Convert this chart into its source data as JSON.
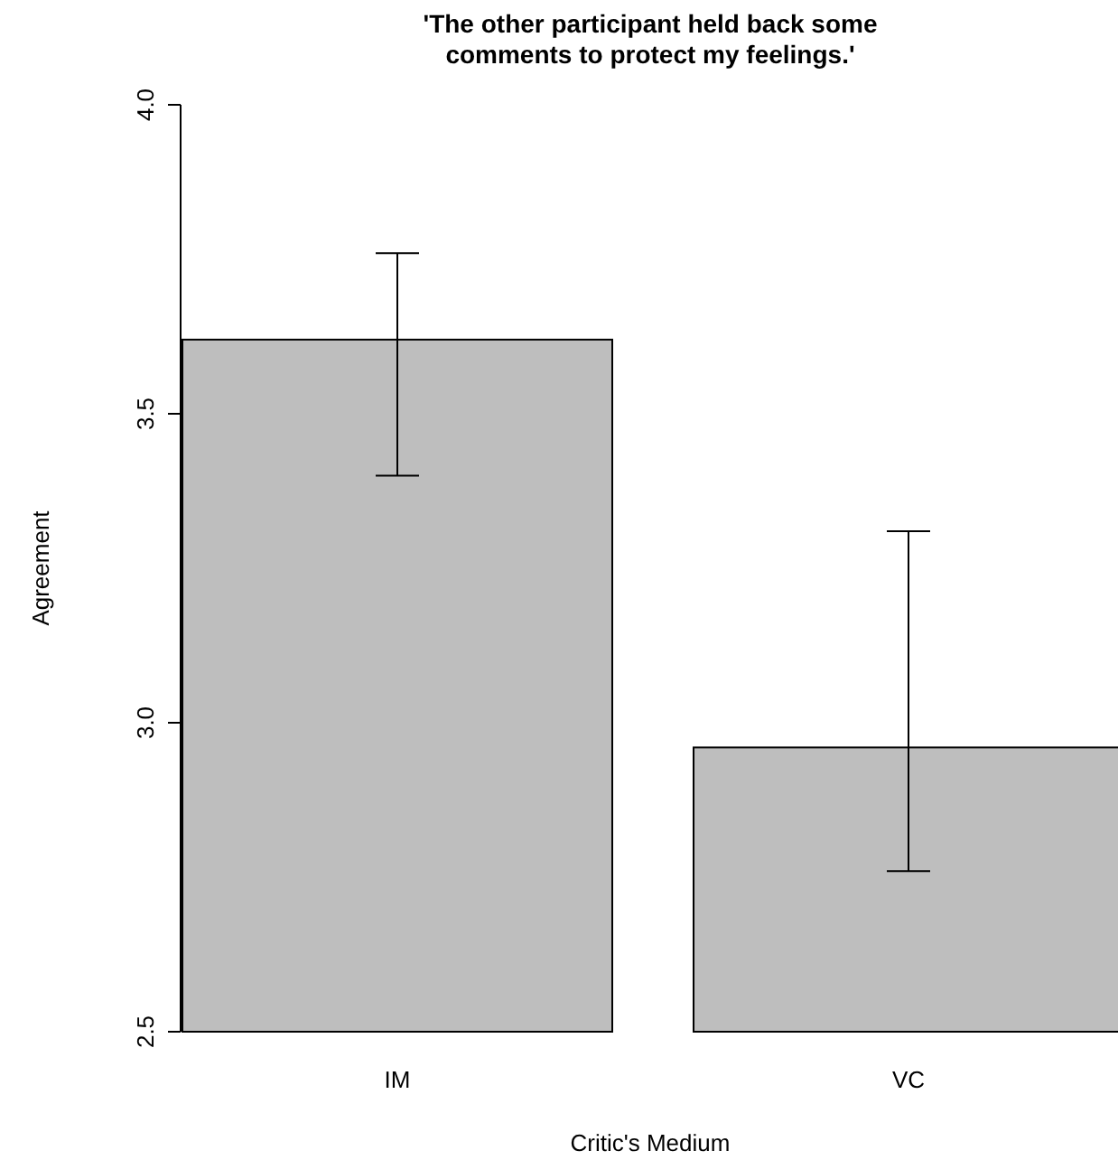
{
  "chart_data": {
    "type": "bar",
    "title": "'The other participant held back some\ncomments to protect my feelings.'",
    "xlabel": "Critic's Medium",
    "ylabel": "Agreement",
    "categories": [
      "IM",
      "VC"
    ],
    "values": [
      3.62,
      2.96
    ],
    "errors": [
      [
        3.4,
        3.76
      ],
      [
        2.76,
        3.31
      ]
    ],
    "color": "#bebebe",
    "ylim": [
      2.5,
      4.0
    ],
    "yticks": [
      {
        "value": 2.5,
        "label": "2.5"
      },
      {
        "value": 3.0,
        "label": "3.0"
      },
      {
        "value": 3.5,
        "label": "3.5"
      },
      {
        "value": 4.0,
        "label": "4.0"
      }
    ],
    "grid": false
  }
}
